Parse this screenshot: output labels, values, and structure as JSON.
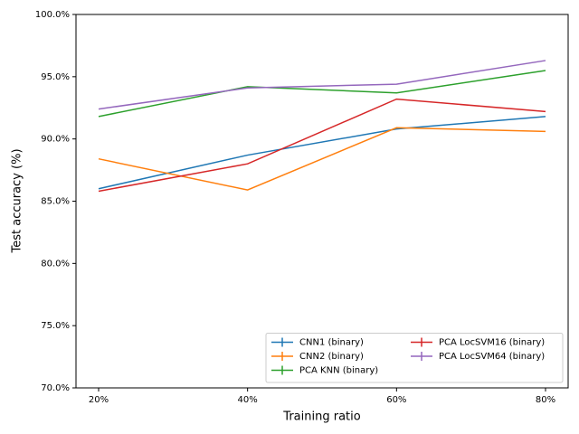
{
  "chart_data": {
    "type": "line",
    "x_label": "Training ratio",
    "y_label": "Test accuracy (%)",
    "categories": [
      "20%",
      "40%",
      "60%",
      "80%"
    ],
    "series": [
      {
        "name": "CNN1 (binary)",
        "color": "#1f77b4",
        "values": [
          86.0,
          88.7,
          90.8,
          91.8
        ]
      },
      {
        "name": "CNN2 (binary)",
        "color": "#ff7f0e",
        "values": [
          88.4,
          85.9,
          90.9,
          90.6
        ]
      },
      {
        "name": "PCA KNN (binary)",
        "color": "#2ca02c",
        "values": [
          91.8,
          94.2,
          93.7,
          95.5
        ]
      },
      {
        "name": "PCA LocSVM16 (binary)",
        "color": "#d62728",
        "values": [
          85.8,
          88.0,
          93.2,
          92.2
        ]
      },
      {
        "name": "PCA LocSVM64 (binary)",
        "color": "#9467bd",
        "values": [
          92.4,
          94.1,
          94.4,
          96.3
        ]
      }
    ],
    "ylim": [
      70,
      100
    ],
    "yticks": [
      {
        "value": 70,
        "label": "70.0%"
      },
      {
        "value": 75,
        "label": "75.0%"
      },
      {
        "value": 80,
        "label": "80.0%"
      },
      {
        "value": 85,
        "label": "85.0%"
      },
      {
        "value": 90,
        "label": "90.0%"
      },
      {
        "value": 95,
        "label": "95.0%"
      },
      {
        "value": 100,
        "label": "100.0%"
      }
    ],
    "legend": "lower right",
    "legend_columns": 2,
    "grid": false
  }
}
